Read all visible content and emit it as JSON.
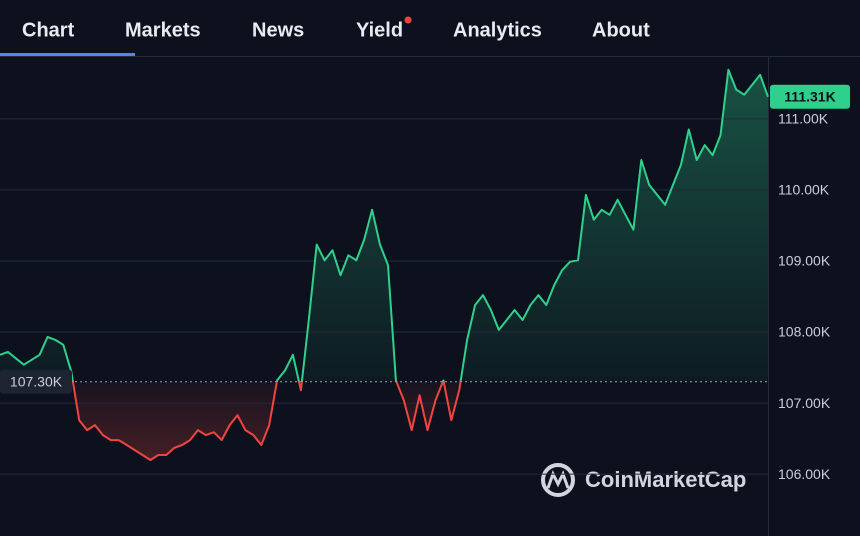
{
  "nav": {
    "tabs": [
      "Chart",
      "Markets",
      "News",
      "Yield",
      "Analytics",
      "About"
    ],
    "active": 0,
    "badge": 3
  },
  "chart_data": {
    "type": "line",
    "series": [
      {
        "color": "#2fd08c",
        "values": [
          107.68,
          107.72,
          107.63,
          107.54,
          107.61,
          107.68,
          107.93,
          107.89,
          107.82,
          107.44,
          106.76,
          106.62,
          106.69,
          106.55,
          106.48,
          106.48,
          106.41,
          106.34,
          106.27,
          106.2,
          106.27,
          106.27,
          106.37,
          106.41,
          106.48,
          106.62,
          106.55,
          106.59,
          106.48,
          106.69,
          106.83,
          106.62,
          106.55,
          106.41,
          106.69,
          107.32,
          107.46,
          107.68,
          107.18,
          108.17,
          109.23,
          109.01,
          109.15,
          108.8,
          109.08,
          109.01,
          109.3,
          109.72,
          109.23,
          108.94,
          107.32,
          107.04,
          106.62,
          107.11,
          106.62,
          107.04,
          107.32,
          106.76,
          107.18,
          107.89,
          108.38,
          108.52,
          108.31,
          108.03,
          108.17,
          108.31,
          108.17,
          108.38,
          108.52,
          108.38,
          108.66,
          108.87,
          108.99,
          109.01,
          109.93,
          109.58,
          109.72,
          109.65,
          109.86,
          109.65,
          109.44,
          110.42,
          110.07,
          109.93,
          109.79,
          110.07,
          110.35,
          110.85,
          110.42,
          110.63,
          110.49,
          110.77,
          111.69,
          111.41,
          111.34,
          111.48,
          111.62,
          111.31
        ]
      }
    ],
    "down_color": "#f0453f",
    "baseline": {
      "value": 107.3,
      "label": "107.30K"
    },
    "last_price": {
      "value": 111.31,
      "label": "111.31K"
    },
    "ylim": [
      105.13,
      111.87
    ],
    "yticks": [
      {
        "value": 106,
        "label": "106.00K"
      },
      {
        "value": 107,
        "label": "107.00K"
      },
      {
        "value": 108,
        "label": "108.00K"
      },
      {
        "value": 109,
        "label": "109.00K"
      },
      {
        "value": 110,
        "label": "110.00K"
      },
      {
        "value": 111,
        "label": "111.00K"
      }
    ],
    "grid": true,
    "watermark": "CoinMarketCap"
  }
}
